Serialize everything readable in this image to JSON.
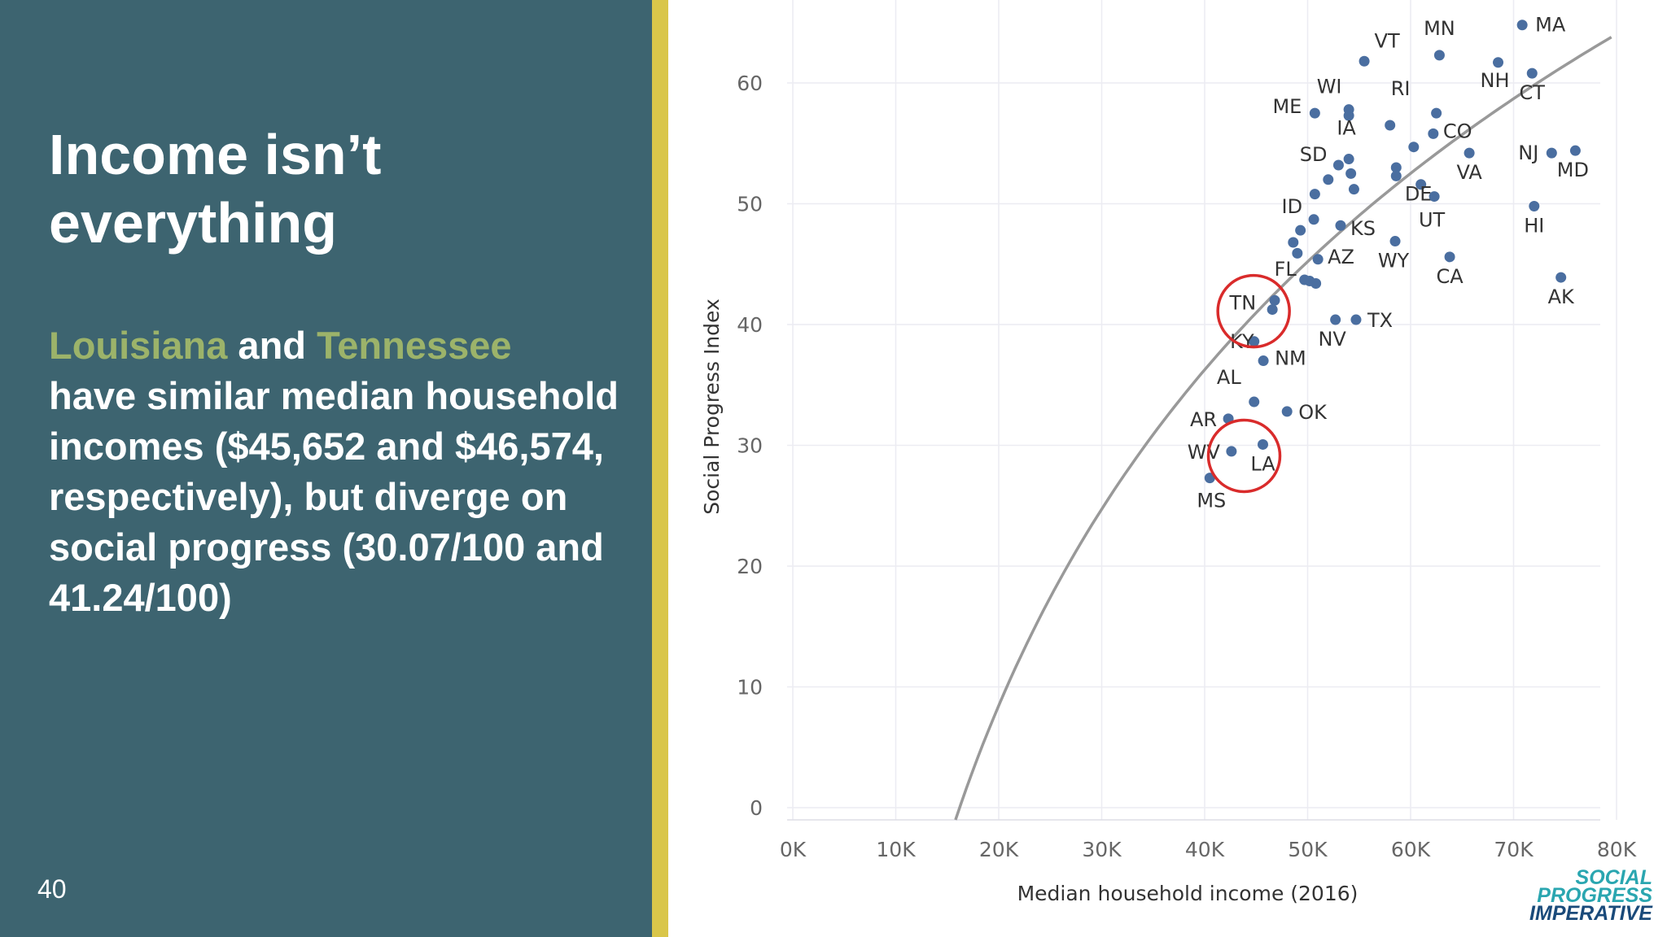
{
  "slide": {
    "title_line1": "Income isn’t",
    "title_line2": "everything",
    "hl1": "Louisiana",
    "and1": " and ",
    "hl2": "Tennessee",
    "body_rest": "have similar median household incomes ($45,652 and $46,574, respectively), but diverge on social progress (30.07/100 and 41.24/100)",
    "slide_number": "40"
  },
  "logo": {
    "line1": "SOCIAL",
    "line2": "PROGRESS",
    "line3": "IMPERATIVE"
  },
  "colors": {
    "panel": "#3d6470",
    "stripe": "#d9c64a",
    "highlight": "#9cb36a",
    "dot": "#4a6ea0",
    "curve": "#999999",
    "circle": "#d92b2b",
    "logo_teal": "#2aa6b0",
    "logo_navy": "#1a4a7a"
  },
  "chart_data": {
    "type": "scatter",
    "xlabel": "Median household income (2016)",
    "ylabel": "Social Progress Index",
    "xlim": [
      0,
      80000
    ],
    "ylim": [
      0,
      65
    ],
    "x_ticks": [
      0,
      10000,
      20000,
      30000,
      40000,
      50000,
      60000,
      70000,
      80000
    ],
    "x_tick_labels": [
      "0K",
      "10K",
      "20K",
      "30K",
      "40K",
      "50K",
      "60K",
      "70K",
      "80K"
    ],
    "y_ticks": [
      0,
      10,
      20,
      30,
      40,
      50,
      60
    ],
    "y_tick_labels": [
      "0",
      "10",
      "20",
      "30",
      "40",
      "50",
      "60"
    ],
    "grid": true,
    "trend": {
      "type": "logarithmic",
      "start_x": 15800,
      "end_x": 79500,
      "start_y": -1,
      "end_y": 63.8
    },
    "points": [
      {
        "x": 70841,
        "y": 64.8,
        "label": "MA"
      },
      {
        "x": 55500,
        "y": 61.8,
        "label": "VT"
      },
      {
        "x": 62800,
        "y": 62.3,
        "label": "MN"
      },
      {
        "x": 68500,
        "y": 61.7,
        "label": "NH"
      },
      {
        "x": 71800,
        "y": 60.8,
        "label": "CT"
      },
      {
        "x": 54000,
        "y": 57.8,
        "label": "WI"
      },
      {
        "x": 62500,
        "y": 57.5,
        "label": "RI"
      },
      {
        "x": 50700,
        "y": 57.5,
        "label": "ME"
      },
      {
        "x": 54000,
        "y": 57.3,
        "label": ""
      },
      {
        "x": 58000,
        "y": 56.5,
        "label": ""
      },
      {
        "x": 62200,
        "y": 55.8,
        "label": "CO"
      },
      {
        "x": 60300,
        "y": 54.7,
        "label": ""
      },
      {
        "x": 54000,
        "y": 53.7,
        "label": "IA"
      },
      {
        "x": 65700,
        "y": 54.2,
        "label": "VA"
      },
      {
        "x": 73700,
        "y": 54.2,
        "label": "NJ"
      },
      {
        "x": 76000,
        "y": 54.4,
        "label": "MD"
      },
      {
        "x": 53000,
        "y": 53.2,
        "label": "SD"
      },
      {
        "x": 54200,
        "y": 52.5,
        "label": ""
      },
      {
        "x": 58600,
        "y": 53.0,
        "label": ""
      },
      {
        "x": 58600,
        "y": 52.3,
        "label": ""
      },
      {
        "x": 52000,
        "y": 52.0,
        "label": ""
      },
      {
        "x": 61000,
        "y": 51.6,
        "label": "DE"
      },
      {
        "x": 54500,
        "y": 51.2,
        "label": ""
      },
      {
        "x": 50700,
        "y": 50.8,
        "label": ""
      },
      {
        "x": 62300,
        "y": 50.6,
        "label": "UT"
      },
      {
        "x": 72000,
        "y": 49.8,
        "label": "HI"
      },
      {
        "x": 50600,
        "y": 48.7,
        "label": "ID"
      },
      {
        "x": 53200,
        "y": 48.2,
        "label": "KS"
      },
      {
        "x": 49300,
        "y": 47.8,
        "label": ""
      },
      {
        "x": 48600,
        "y": 46.8,
        "label": ""
      },
      {
        "x": 58500,
        "y": 46.9,
        "label": "WY"
      },
      {
        "x": 49000,
        "y": 45.9,
        "label": ""
      },
      {
        "x": 51000,
        "y": 45.4,
        "label": "AZ"
      },
      {
        "x": 63800,
        "y": 45.6,
        "label": "CA"
      },
      {
        "x": 49700,
        "y": 43.7,
        "label": "FL"
      },
      {
        "x": 50200,
        "y": 43.6,
        "label": ""
      },
      {
        "x": 50800,
        "y": 43.4,
        "label": ""
      },
      {
        "x": 74600,
        "y": 43.9,
        "label": "AK"
      },
      {
        "x": 46800,
        "y": 42.0,
        "label": ""
      },
      {
        "x": 46574,
        "y": 41.24,
        "label": "TN"
      },
      {
        "x": 52700,
        "y": 40.4,
        "label": "NV"
      },
      {
        "x": 54700,
        "y": 40.4,
        "label": "TX"
      },
      {
        "x": 44800,
        "y": 38.6,
        "label": "KY"
      },
      {
        "x": 45700,
        "y": 37.0,
        "label": "NM"
      },
      {
        "x": 44800,
        "y": 33.6,
        "label": "AL"
      },
      {
        "x": 48000,
        "y": 32.8,
        "label": "OK"
      },
      {
        "x": 42300,
        "y": 32.2,
        "label": "AR"
      },
      {
        "x": 45652,
        "y": 30.07,
        "label": "LA"
      },
      {
        "x": 42600,
        "y": 29.5,
        "label": "WV"
      },
      {
        "x": 40500,
        "y": 27.3,
        "label": "MS"
      }
    ],
    "highlighted": [
      "TN",
      "LA"
    ]
  }
}
